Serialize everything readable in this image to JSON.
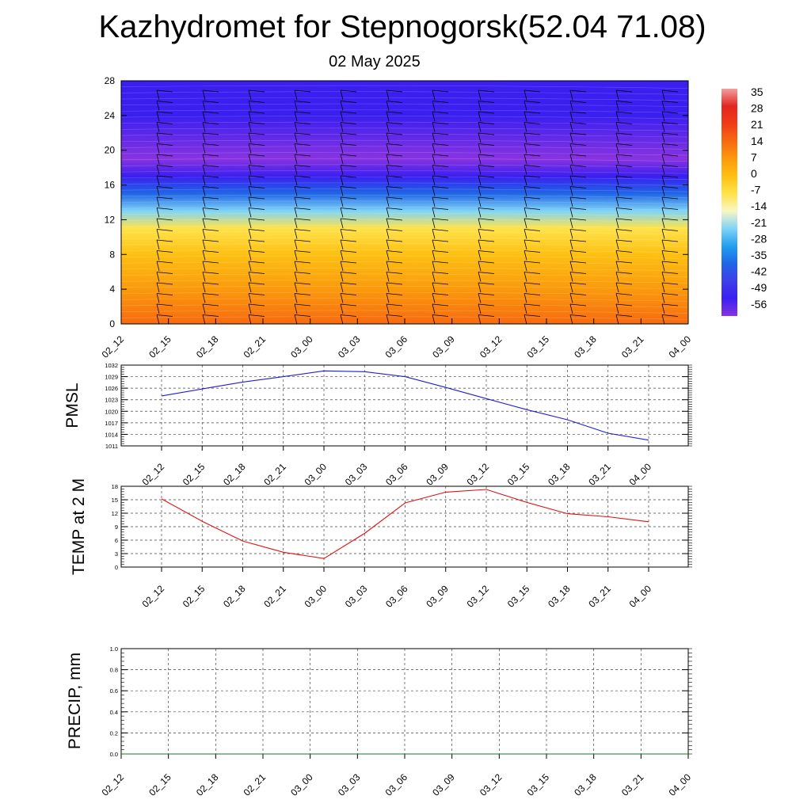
{
  "header": {
    "title": "Kazhydromet for Stepnogorsk(52.04 71.08)",
    "subtitle": "02 May 2025"
  },
  "chart_data": [
    {
      "type": "heatmap",
      "title": "",
      "xlabel": "",
      "ylabel": "",
      "x_ticks": [
        "02_12",
        "02_15",
        "02_18",
        "02_21",
        "03_00",
        "03_03",
        "03_06",
        "03_09",
        "03_12",
        "03_15",
        "03_18",
        "03_21",
        "04_00"
      ],
      "y_ticks": [
        0,
        4,
        8,
        12,
        16,
        20,
        24,
        28
      ],
      "ylim": [
        0,
        28
      ],
      "colorbar_labels": [
        "35",
        "28",
        "21",
        "14",
        "7",
        "0",
        "-7",
        "-14",
        "-21",
        "-28",
        "-35",
        "-42",
        "-49",
        "-56"
      ],
      "colorbar_colors": [
        "#f2a0a0",
        "#e3261f",
        "#f03c18",
        "#f76a10",
        "#fb9a0c",
        "#fdc012",
        "#ffe34a",
        "#f8f6c4",
        "#80d4f6",
        "#22a0ee",
        "#1f66e6",
        "#3f3fe8",
        "#3a1ff0",
        "#8833e0"
      ],
      "vertical_temperature_profile": [
        {
          "level": 0,
          "value": 14
        },
        {
          "level": 4,
          "value": 7
        },
        {
          "level": 8,
          "value": 0
        },
        {
          "level": 11,
          "value": -7
        },
        {
          "level": 13,
          "value": -21
        },
        {
          "level": 15,
          "value": -35
        },
        {
          "level": 17,
          "value": -49
        },
        {
          "level": 19,
          "value": -56
        },
        {
          "level": 24,
          "value": -49
        },
        {
          "level": 28,
          "value": -49
        }
      ],
      "wind_barbs": true
    },
    {
      "type": "line",
      "title": "",
      "xlabel": "",
      "ylabel": "PMSL",
      "categories": [
        "02_12",
        "02_15",
        "02_18",
        "02_21",
        "03_00",
        "03_03",
        "03_06",
        "03_09",
        "03_12",
        "03_15",
        "03_18",
        "03_21",
        "04_00"
      ],
      "series": [
        {
          "values": [
            1024,
            1025.8,
            1027.6,
            1029,
            1030.5,
            1030.3,
            1029,
            1026.2,
            1023.3,
            1020.4,
            1017.8,
            1014.3,
            1012.5
          ]
        }
      ],
      "yticks": [
        1011,
        1014,
        1017,
        1020,
        1023,
        1026,
        1029,
        1032
      ],
      "ylim": [
        1011,
        1032
      ],
      "color": "#1f1fd8",
      "grid": true
    },
    {
      "type": "line",
      "title": "",
      "xlabel": "",
      "ylabel": "TEMP at 2 M",
      "categories": [
        "02_12",
        "02_15",
        "02_18",
        "02_21",
        "03_00",
        "03_03",
        "03_06",
        "03_09",
        "03_12",
        "03_15",
        "03_18",
        "03_21",
        "04_00"
      ],
      "series": [
        {
          "values": [
            15.2,
            10.2,
            5.8,
            3.3,
            1.9,
            7.5,
            14.3,
            16.7,
            17.3,
            14.4,
            11.9,
            11.2,
            10.1
          ]
        }
      ],
      "yticks": [
        0,
        3,
        6,
        9,
        12,
        15,
        18
      ],
      "ylim": [
        0,
        18
      ],
      "color": "#e01010",
      "grid": true
    },
    {
      "type": "line",
      "title": "",
      "xlabel": "",
      "ylabel": "PRECIP, mm",
      "categories": [
        "02_12",
        "02_15",
        "02_18",
        "02_21",
        "03_00",
        "03_03",
        "03_06",
        "03_09",
        "03_12",
        "03_15",
        "03_18",
        "03_21",
        "04_00"
      ],
      "series": [
        {
          "values": [
            0,
            0,
            0,
            0,
            0,
            0,
            0,
            0,
            0,
            0,
            0,
            0,
            0
          ]
        }
      ],
      "yticks": [
        "0.0",
        "0.2",
        "0.4",
        "0.6",
        "0.8",
        "1.0"
      ],
      "ylim": [
        0,
        1
      ],
      "color": "#1a7a1a",
      "grid": true
    }
  ]
}
